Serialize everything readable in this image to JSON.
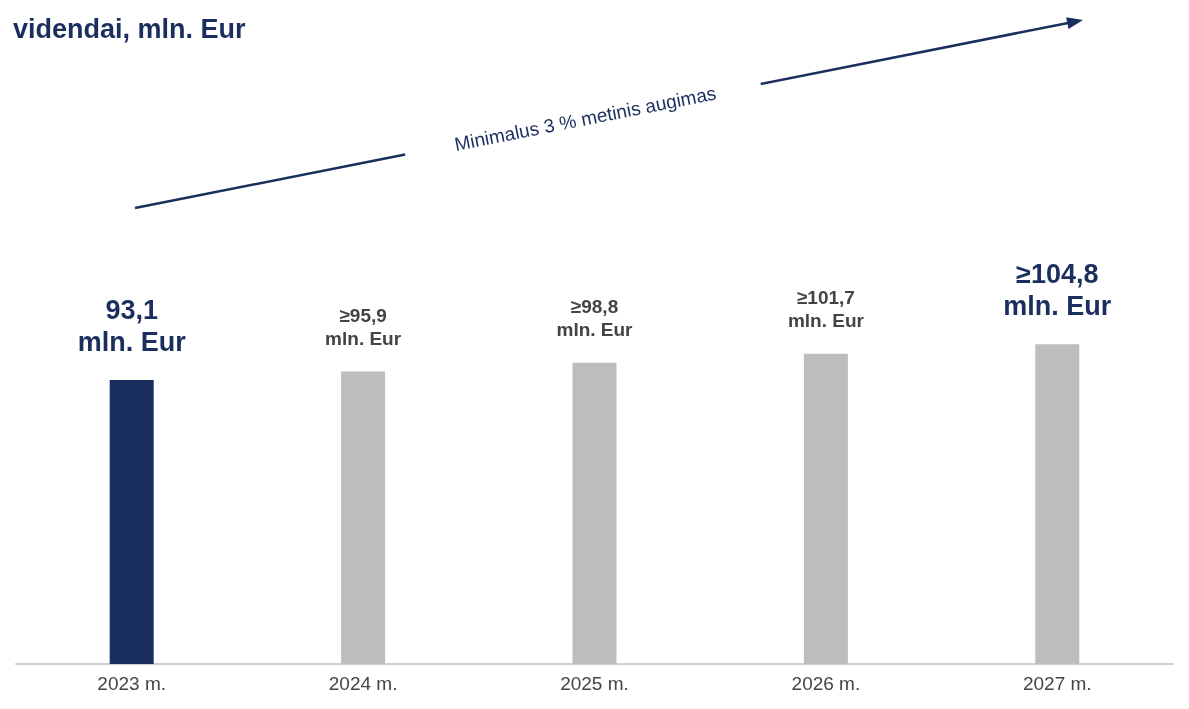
{
  "chart_data": {
    "type": "bar",
    "title": "videndai, mln. Eur",
    "categories": [
      "2023 m.",
      "2024 m.",
      "2025 m.",
      "2026 m.",
      "2027 m."
    ],
    "values": [
      93.1,
      95.9,
      98.8,
      101.7,
      104.8
    ],
    "colors": [
      "#1b2f5e",
      "#bcbdbf",
      "#bcbdbf",
      "#bcbdbf",
      "#bcbdbf"
    ],
    "value_labels": [
      "93,1\nmln. Eur",
      "≥95,9\nmln. Eur",
      "≥98,8\nmln. Eur",
      "≥101,7\nmln. Eur",
      "≥104,8\nmln. Eur"
    ],
    "annotations": [
      "Minimalus 3 % metinis augimas"
    ],
    "grid": false
  }
}
